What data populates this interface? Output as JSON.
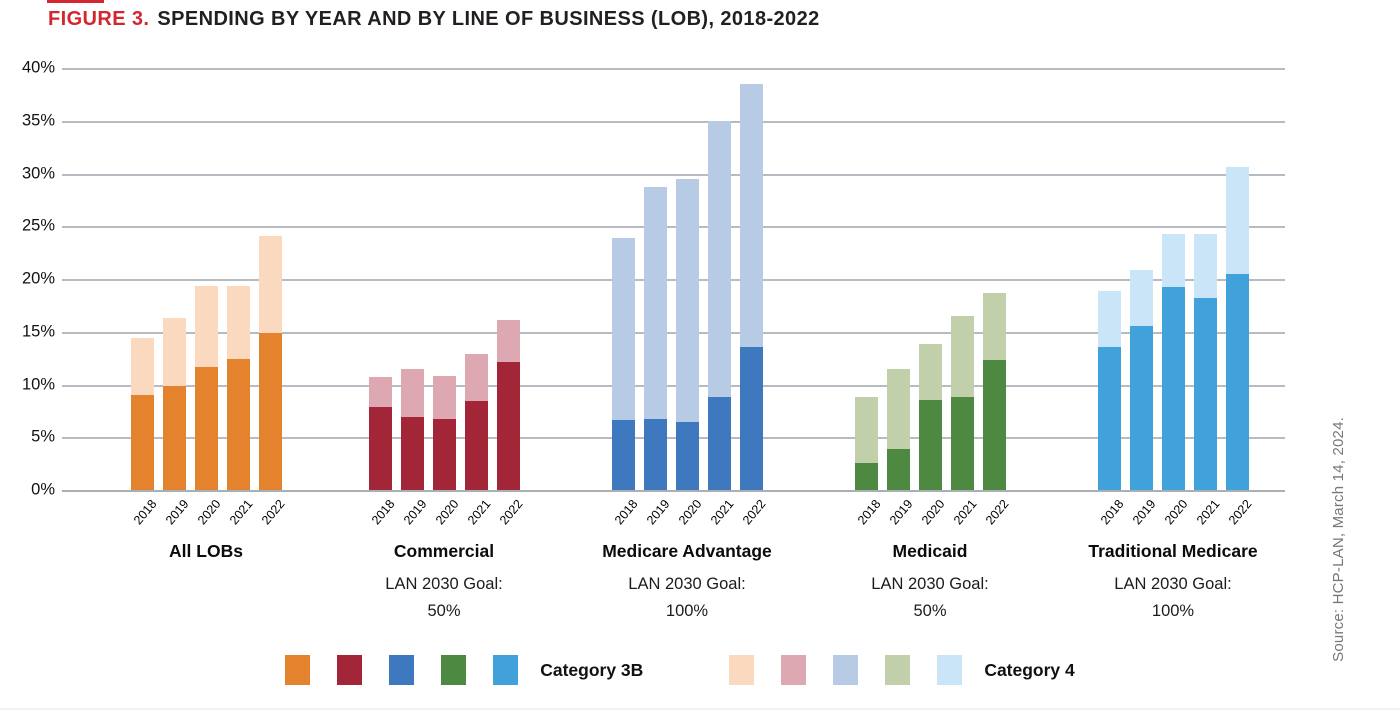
{
  "figure": {
    "label": "FIGURE 3.",
    "title": "SPENDING BY YEAR AND BY LINE OF BUSINESS (LOB), 2018-2022"
  },
  "source_note": "Source: HCP-LAN, March 14, 2024.",
  "colors": {
    "figure_label_red": "#d22630",
    "title_text": "#231f20",
    "gridline": "#a9b0b7",
    "source_text": "#75787b"
  },
  "legend": {
    "category_3b_label": "Category 3B",
    "category_4_label": "Category 4",
    "category_3b_swatches": [
      "#e5822e",
      "#a32638",
      "#3e79bf",
      "#4e8941",
      "#41a1db"
    ],
    "category_4_swatches": [
      "#fad9be",
      "#dea8b2",
      "#b8cbe4",
      "#c1d0aa",
      "#c9e5f7"
    ]
  },
  "chart_data": {
    "type": "bar",
    "stacked": true,
    "title": "FIGURE 3. SPENDING BY YEAR AND BY LINE OF BUSINESS (LOB), 2018-2022",
    "series_names": [
      "Category 3B",
      "Category 4"
    ],
    "x_categories_per_group": [
      "2018",
      "2019",
      "2020",
      "2021",
      "2022"
    ],
    "y_ticks": [
      "0%",
      "5%",
      "10%",
      "15%",
      "20%",
      "25%",
      "30%",
      "35%",
      "40%"
    ],
    "ylim": [
      0,
      40
    ],
    "y_unit": "percent",
    "grid": true,
    "legend_position": "bottom",
    "groups": [
      {
        "label": "All LOBs",
        "goal_label": null,
        "goal_value": null,
        "color_category_3b": "#e5822e",
        "color_category_4": "#fad9be",
        "category_3b": [
          9.0,
          9.9,
          11.7,
          12.4,
          14.9
        ],
        "category_4": [
          5.4,
          6.4,
          7.6,
          6.9,
          9.2
        ],
        "stack_totals": [
          14.4,
          16.3,
          19.3,
          19.3,
          24.1
        ]
      },
      {
        "label": "Commercial",
        "goal_label": "LAN 2030 Goal:",
        "goal_value": "50%",
        "color_category_3b": "#a32638",
        "color_category_4": "#dea8b2",
        "category_3b": [
          7.9,
          6.9,
          6.7,
          8.4,
          12.1
        ],
        "category_4": [
          2.8,
          4.6,
          4.1,
          4.5,
          4.0
        ],
        "stack_totals": [
          10.7,
          11.5,
          10.8,
          12.9,
          16.1
        ]
      },
      {
        "label": "Medicare Advantage",
        "goal_label": "LAN 2030 Goal:",
        "goal_value": "100%",
        "color_category_3b": "#3e79bf",
        "color_category_4": "#b8cbe4",
        "category_3b": [
          6.6,
          6.7,
          6.4,
          8.8,
          13.6
        ],
        "category_4": [
          17.3,
          22.0,
          23.1,
          26.2,
          24.9
        ],
        "stack_totals": [
          23.9,
          28.7,
          29.5,
          35.0,
          38.5
        ]
      },
      {
        "label": "Medicaid",
        "goal_label": "LAN 2030 Goal:",
        "goal_value": "50%",
        "color_category_3b": "#4e8941",
        "color_category_4": "#c1d0aa",
        "category_3b": [
          2.6,
          3.9,
          8.5,
          8.8,
          12.3
        ],
        "category_4": [
          6.2,
          7.6,
          5.3,
          7.7,
          6.4
        ],
        "stack_totals": [
          8.8,
          11.5,
          13.8,
          16.5,
          18.7
        ]
      },
      {
        "label": "Traditional Medicare",
        "goal_label": "LAN 2030 Goal:",
        "goal_value": "100%",
        "color_category_3b": "#41a1db",
        "color_category_4": "#c9e5f7",
        "category_3b": [
          13.6,
          15.5,
          19.2,
          18.2,
          20.5
        ],
        "category_4": [
          5.3,
          5.4,
          5.1,
          6.1,
          10.1
        ],
        "stack_totals": [
          18.9,
          20.9,
          24.3,
          24.3,
          30.6
        ]
      }
    ]
  }
}
